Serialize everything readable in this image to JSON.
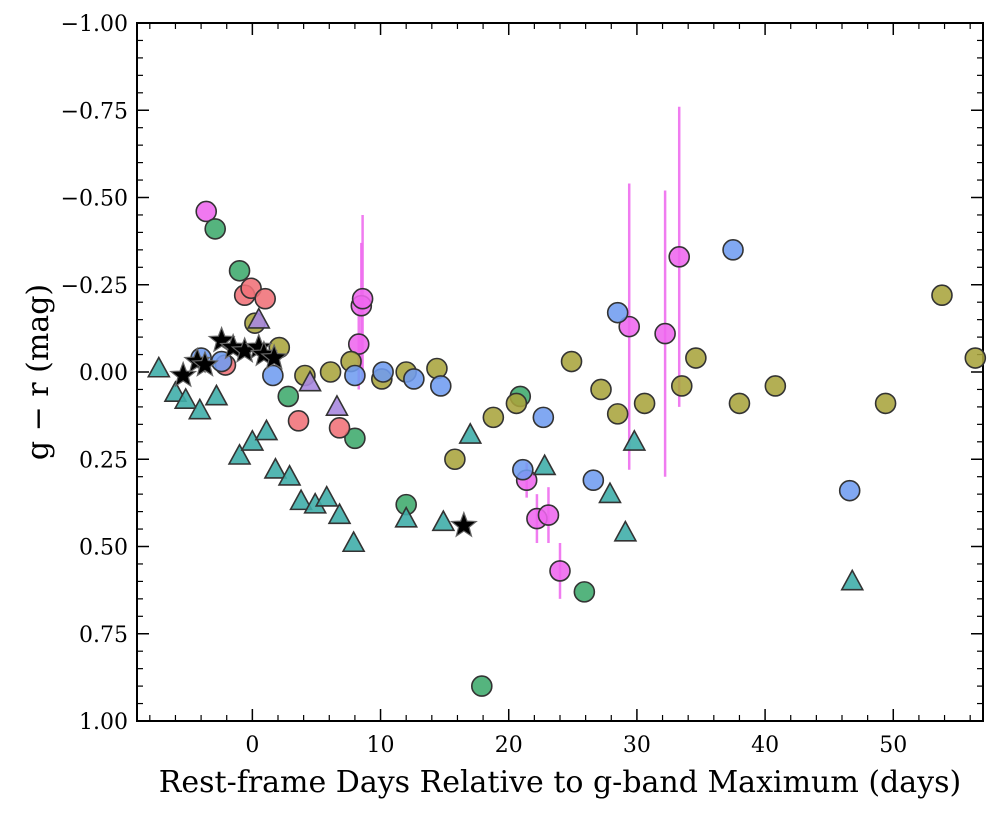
{
  "chart_data": {
    "type": "scatter",
    "title": "",
    "xlabel": "Rest-frame Days Relative to g-band Maximum (days)",
    "ylabel": "g − r (mag)",
    "xlim": [
      -9,
      57
    ],
    "ylim": [
      1.0,
      -1.0
    ],
    "y_inverted": true,
    "x_ticks": [
      0,
      10,
      20,
      30,
      40,
      50
    ],
    "x_tick_labels": [
      "0",
      "10",
      "20",
      "30",
      "40",
      "50"
    ],
    "y_ticks": [
      -1.0,
      -0.75,
      -0.5,
      -0.25,
      0.0,
      0.25,
      0.5,
      0.75,
      1.0
    ],
    "y_tick_labels": [
      "−1.00",
      "−0.75",
      "−0.50",
      "−0.25",
      "0.00",
      "0.25",
      "0.50",
      "0.75",
      "1.00"
    ],
    "grid": false,
    "series": [
      {
        "name": "magenta circles",
        "marker": "circle",
        "color": "#ee66ee",
        "points": [
          {
            "x": -3.6,
            "y": -0.46
          },
          {
            "x": 8.3,
            "y": -0.08,
            "err": 0.13
          },
          {
            "x": 8.5,
            "y": -0.19,
            "err": 0.18
          },
          {
            "x": 8.6,
            "y": -0.21,
            "err": 0.24
          },
          {
            "x": 21.4,
            "y": 0.31,
            "err": 0.05
          },
          {
            "x": 22.2,
            "y": 0.42,
            "err": 0.07
          },
          {
            "x": 23.1,
            "y": 0.41,
            "err": 0.08
          },
          {
            "x": 24.0,
            "y": 0.57,
            "err": 0.08
          },
          {
            "x": 29.4,
            "y": -0.13,
            "err": 0.41
          },
          {
            "x": 32.2,
            "y": -0.11,
            "err": 0.41
          },
          {
            "x": 33.3,
            "y": -0.33,
            "err": 0.43
          }
        ]
      },
      {
        "name": "green circles",
        "marker": "circle",
        "color": "#3daa6c",
        "points": [
          {
            "x": -2.9,
            "y": -0.41
          },
          {
            "x": -1.0,
            "y": -0.29
          },
          {
            "x": 2.8,
            "y": 0.07
          },
          {
            "x": 8.0,
            "y": 0.19
          },
          {
            "x": 12.0,
            "y": 0.38
          },
          {
            "x": 17.9,
            "y": 0.9
          },
          {
            "x": 20.9,
            "y": 0.07
          },
          {
            "x": 25.9,
            "y": 0.63
          }
        ]
      },
      {
        "name": "salmon circles",
        "marker": "circle",
        "color": "#f07178",
        "points": [
          {
            "x": -0.6,
            "y": -0.22
          },
          {
            "x": -0.1,
            "y": -0.24
          },
          {
            "x": 1.0,
            "y": -0.21
          },
          {
            "x": -2.1,
            "y": -0.02
          },
          {
            "x": 3.6,
            "y": 0.14
          },
          {
            "x": 6.8,
            "y": 0.16
          }
        ]
      },
      {
        "name": "olive circles",
        "marker": "circle",
        "color": "#a8a43c",
        "points": [
          {
            "x": 0.2,
            "y": -0.14
          },
          {
            "x": 2.1,
            "y": -0.07
          },
          {
            "x": 4.1,
            "y": 0.01
          },
          {
            "x": 6.1,
            "y": 0.0
          },
          {
            "x": 7.7,
            "y": -0.03
          },
          {
            "x": 10.1,
            "y": 0.02
          },
          {
            "x": 12.0,
            "y": 0.0
          },
          {
            "x": 14.4,
            "y": -0.01
          },
          {
            "x": 15.8,
            "y": 0.25
          },
          {
            "x": 18.8,
            "y": 0.13
          },
          {
            "x": 20.6,
            "y": 0.09
          },
          {
            "x": 24.9,
            "y": -0.03
          },
          {
            "x": 27.2,
            "y": 0.05
          },
          {
            "x": 28.5,
            "y": 0.12
          },
          {
            "x": 30.6,
            "y": 0.09
          },
          {
            "x": 33.5,
            "y": 0.04
          },
          {
            "x": 34.6,
            "y": -0.04
          },
          {
            "x": 38.0,
            "y": 0.09
          },
          {
            "x": 40.8,
            "y": 0.04
          },
          {
            "x": 49.4,
            "y": 0.09
          },
          {
            "x": 53.8,
            "y": -0.22
          },
          {
            "x": 56.4,
            "y": -0.04
          }
        ]
      },
      {
        "name": "blue circles",
        "marker": "circle",
        "color": "#6f9cf0",
        "points": [
          {
            "x": -4.0,
            "y": -0.04
          },
          {
            "x": -2.4,
            "y": -0.03
          },
          {
            "x": 1.6,
            "y": 0.01
          },
          {
            "x": 8.0,
            "y": 0.01
          },
          {
            "x": 10.2,
            "y": 0.0
          },
          {
            "x": 12.6,
            "y": 0.02
          },
          {
            "x": 14.7,
            "y": 0.04
          },
          {
            "x": 21.1,
            "y": 0.28
          },
          {
            "x": 22.7,
            "y": 0.13
          },
          {
            "x": 26.6,
            "y": 0.31
          },
          {
            "x": 28.5,
            "y": -0.17
          },
          {
            "x": 37.5,
            "y": -0.35
          },
          {
            "x": 46.6,
            "y": 0.34
          }
        ]
      },
      {
        "name": "teal triangles",
        "marker": "triangle",
        "color": "#40aeaa",
        "points": [
          {
            "x": -7.3,
            "y": -0.01
          },
          {
            "x": -6.0,
            "y": 0.06
          },
          {
            "x": -5.2,
            "y": 0.08
          },
          {
            "x": -4.1,
            "y": 0.11
          },
          {
            "x": -2.8,
            "y": 0.07
          },
          {
            "x": -1.0,
            "y": 0.24
          },
          {
            "x": 0.0,
            "y": 0.2
          },
          {
            "x": 1.1,
            "y": 0.17
          },
          {
            "x": 1.8,
            "y": 0.28
          },
          {
            "x": 2.9,
            "y": 0.3
          },
          {
            "x": 3.8,
            "y": 0.37
          },
          {
            "x": 4.9,
            "y": 0.38
          },
          {
            "x": 5.8,
            "y": 0.36
          },
          {
            "x": 6.8,
            "y": 0.41
          },
          {
            "x": 7.9,
            "y": 0.49
          },
          {
            "x": 12.0,
            "y": 0.42
          },
          {
            "x": 14.9,
            "y": 0.43
          },
          {
            "x": 17.0,
            "y": 0.18
          },
          {
            "x": 22.8,
            "y": 0.27
          },
          {
            "x": 27.9,
            "y": 0.35
          },
          {
            "x": 29.1,
            "y": 0.46
          },
          {
            "x": 29.8,
            "y": 0.2
          },
          {
            "x": 46.8,
            "y": 0.6
          }
        ]
      },
      {
        "name": "purple triangles",
        "marker": "triangle",
        "color": "#a88ae0",
        "points": [
          {
            "x": 0.5,
            "y": -0.15
          },
          {
            "x": 4.5,
            "y": 0.03
          },
          {
            "x": 6.6,
            "y": 0.1
          }
        ]
      },
      {
        "name": "black stars",
        "marker": "star",
        "color": "#000000",
        "points": [
          {
            "x": -5.4,
            "y": 0.01
          },
          {
            "x": -4.3,
            "y": -0.03
          },
          {
            "x": -3.7,
            "y": -0.02
          },
          {
            "x": -2.4,
            "y": -0.09
          },
          {
            "x": -1.5,
            "y": -0.07
          },
          {
            "x": -0.6,
            "y": -0.06
          },
          {
            "x": 0.5,
            "y": -0.07
          },
          {
            "x": 0.9,
            "y": -0.05
          },
          {
            "x": 1.7,
            "y": -0.04
          },
          {
            "x": 16.5,
            "y": 0.44
          }
        ]
      }
    ]
  }
}
